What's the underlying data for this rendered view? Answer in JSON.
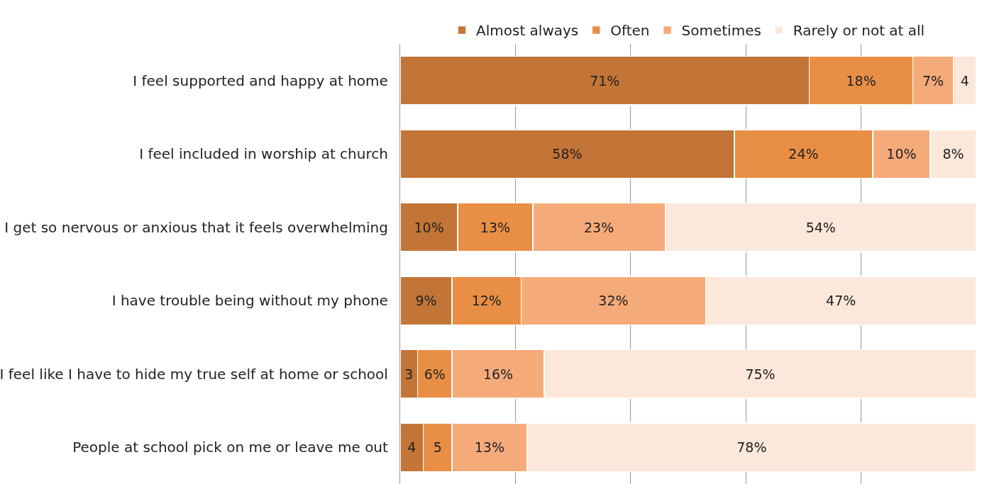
{
  "chart_data": {
    "type": "bar",
    "orientation": "horizontal",
    "stacked": true,
    "categories": [
      "I feel supported and happy at home",
      "I feel included in worship at church",
      "I get so nervous or anxious that it feels overwhelming",
      "I have trouble being without my phone",
      "I feel like I have to hide my true self at home or school",
      "People at school pick on me or leave me out"
    ],
    "series": [
      {
        "name": "Almost always",
        "color": "#c27536",
        "values": [
          71,
          58,
          10,
          9,
          3,
          4
        ],
        "value_labels": [
          "71%",
          "58%",
          "10%",
          "9%",
          "3",
          "4"
        ]
      },
      {
        "name": "Often",
        "color": "#e88f45",
        "values": [
          18,
          24,
          13,
          12,
          6,
          5
        ],
        "value_labels": [
          "18%",
          "24%",
          "13%",
          "12%",
          "6%",
          "5"
        ]
      },
      {
        "name": "Sometimes",
        "color": "#f5aa7a",
        "values": [
          7,
          10,
          23,
          32,
          16,
          13
        ],
        "value_labels": [
          "7%",
          "10%",
          "23%",
          "32%",
          "16%",
          "13%"
        ]
      },
      {
        "name": "Rarely or not at all",
        "color": "#fce8da",
        "values": [
          4,
          8,
          54,
          47,
          75,
          78
        ],
        "value_labels": [
          "4",
          "8%",
          "54%",
          "47%",
          "75%",
          "78%"
        ]
      }
    ],
    "xlim": [
      0,
      100
    ],
    "xticks": [
      {
        "value": 0,
        "label": null
      },
      {
        "value": 20,
        "label": null
      },
      {
        "value": 40,
        "label": null
      },
      {
        "value": 60,
        "label": null
      },
      {
        "value": 80,
        "label": null
      }
    ],
    "grid": "x",
    "legend": "top",
    "tick_labels": "y"
  }
}
